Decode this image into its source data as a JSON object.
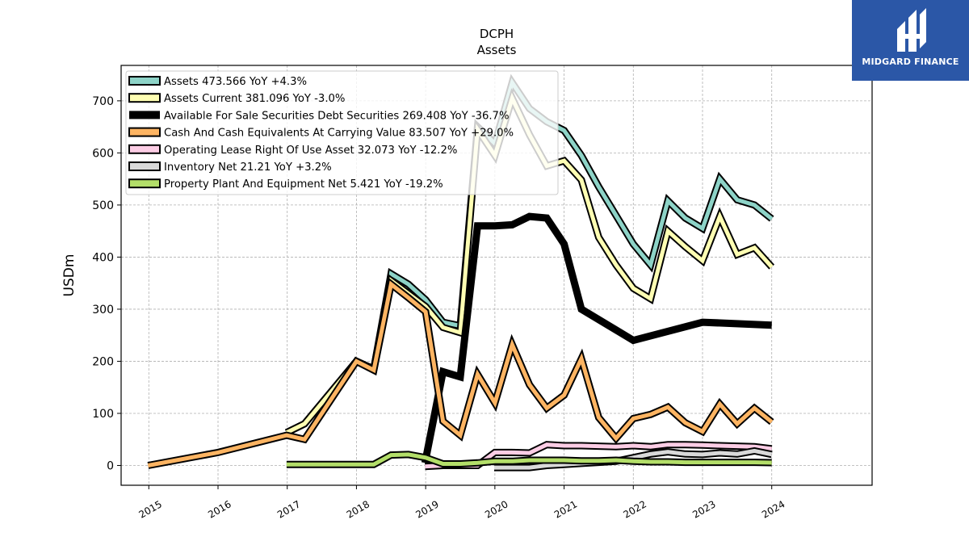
{
  "chart_data": {
    "type": "line",
    "title": "DCPH",
    "subtitle": "Assets",
    "ylabel": "USDm",
    "xlabel": "",
    "xlim": [
      2014.6,
      2025.45
    ],
    "ylim": [
      -38,
      768
    ],
    "yticks": [
      0,
      100,
      200,
      300,
      400,
      500,
      600,
      700
    ],
    "xticks": [
      "2015",
      "2016",
      "2017",
      "2018",
      "2019",
      "2020",
      "2021",
      "2022",
      "2023",
      "2024"
    ],
    "grid": true,
    "legend_position": "top-left",
    "series": [
      {
        "name": "Assets  473.566 YoY +4.3%",
        "color": "#8dd3c7",
        "width": 5,
        "points": [
          [
            2016.99,
            63
          ],
          [
            2017.25,
            80
          ],
          [
            2018.0,
            200
          ],
          [
            2018.25,
            185
          ],
          [
            2018.5,
            368
          ],
          [
            2018.75,
            348
          ],
          [
            2019.0,
            318
          ],
          [
            2019.25,
            275
          ],
          [
            2019.5,
            268
          ],
          [
            2019.75,
            650
          ],
          [
            2020.0,
            618
          ],
          [
            2020.25,
            735
          ],
          [
            2020.5,
            685
          ],
          [
            2020.75,
            660
          ],
          [
            2021.0,
            643
          ],
          [
            2021.25,
            595
          ],
          [
            2021.5,
            535
          ],
          [
            2021.75,
            480
          ],
          [
            2022.0,
            425
          ],
          [
            2022.25,
            385
          ],
          [
            2022.5,
            508
          ],
          [
            2022.75,
            475
          ],
          [
            2023.0,
            455
          ],
          [
            2023.25,
            550
          ],
          [
            2023.5,
            510
          ],
          [
            2023.75,
            500
          ],
          [
            2024.0,
            473.566
          ]
        ]
      },
      {
        "name": "Assets Current  381.096 YoY -3.0%",
        "color": "#ffffb3",
        "width": 5,
        "points": [
          [
            2016.99,
            63
          ],
          [
            2017.25,
            80
          ],
          [
            2018.0,
            200
          ],
          [
            2018.25,
            185
          ],
          [
            2018.5,
            355
          ],
          [
            2018.75,
            330
          ],
          [
            2019.0,
            305
          ],
          [
            2019.25,
            265
          ],
          [
            2019.5,
            255
          ],
          [
            2019.75,
            645
          ],
          [
            2020.0,
            595
          ],
          [
            2020.25,
            705
          ],
          [
            2020.5,
            635
          ],
          [
            2020.75,
            575
          ],
          [
            2021.0,
            585
          ],
          [
            2021.25,
            548
          ],
          [
            2021.5,
            438
          ],
          [
            2021.75,
            385
          ],
          [
            2022.0,
            340
          ],
          [
            2022.25,
            320
          ],
          [
            2022.5,
            450
          ],
          [
            2022.75,
            420
          ],
          [
            2023.0,
            393
          ],
          [
            2023.25,
            478
          ],
          [
            2023.5,
            405
          ],
          [
            2023.75,
            418
          ],
          [
            2024.0,
            381.096
          ]
        ]
      },
      {
        "name": "Available For Sale Securities Debt Securities  269.408 YoY -36.7%",
        "color": "#000000",
        "width": 9,
        "border": false,
        "points": [
          [
            2018.99,
            5
          ],
          [
            2019.25,
            180
          ],
          [
            2019.5,
            170
          ],
          [
            2019.75,
            460
          ],
          [
            2020.0,
            460
          ],
          [
            2020.25,
            462
          ],
          [
            2020.5,
            478
          ],
          [
            2020.75,
            475
          ],
          [
            2021.0,
            425
          ],
          [
            2021.25,
            300
          ],
          [
            2022.0,
            240
          ],
          [
            2023.0,
            275
          ],
          [
            2024.0,
            269.408
          ]
        ]
      },
      {
        "name": "Cash And Cash Equivalents At Carrying Value  83.507 YoY +29.0%",
        "color": "#fdb462",
        "width": 5,
        "points": [
          [
            2014.99,
            0
          ],
          [
            2016.0,
            25
          ],
          [
            2016.99,
            58
          ],
          [
            2017.25,
            50
          ],
          [
            2018.0,
            200
          ],
          [
            2018.25,
            183
          ],
          [
            2018.5,
            348
          ],
          [
            2018.75,
            322
          ],
          [
            2019.0,
            295
          ],
          [
            2019.25,
            85
          ],
          [
            2019.5,
            58
          ],
          [
            2019.75,
            175
          ],
          [
            2020.0,
            120
          ],
          [
            2020.25,
            232
          ],
          [
            2020.5,
            155
          ],
          [
            2020.75,
            110
          ],
          [
            2021.0,
            135
          ],
          [
            2021.25,
            205
          ],
          [
            2021.5,
            92
          ],
          [
            2021.75,
            52
          ],
          [
            2022.0,
            90
          ],
          [
            2022.25,
            98
          ],
          [
            2022.5,
            112
          ],
          [
            2022.75,
            82
          ],
          [
            2023.0,
            65
          ],
          [
            2023.25,
            118
          ],
          [
            2023.5,
            80
          ],
          [
            2023.75,
            110
          ],
          [
            2024.0,
            83.507
          ]
        ]
      },
      {
        "name": "Operating Lease Right Of Use Asset  32.073 YoY -12.2%",
        "color": "#fccde5",
        "width": 5,
        "points": [
          [
            2018.99,
            -2
          ],
          [
            2019.25,
            0
          ],
          [
            2019.5,
            0
          ],
          [
            2019.75,
            0
          ],
          [
            2020.0,
            25
          ],
          [
            2020.25,
            25
          ],
          [
            2020.5,
            24
          ],
          [
            2020.75,
            40
          ],
          [
            2021.0,
            38
          ],
          [
            2021.25,
            38
          ],
          [
            2021.5,
            37
          ],
          [
            2021.75,
            36
          ],
          [
            2022.0,
            38
          ],
          [
            2022.25,
            36
          ],
          [
            2022.5,
            40
          ],
          [
            2022.75,
            40
          ],
          [
            2023.0,
            39
          ],
          [
            2023.25,
            38
          ],
          [
            2023.5,
            37
          ],
          [
            2023.75,
            36
          ],
          [
            2024.0,
            32.073
          ]
        ]
      },
      {
        "name": "Inventory Net  21.21 YoY +3.2%",
        "color": "#d9d9d9",
        "width": 5,
        "points": [
          [
            2019.99,
            -4
          ],
          [
            2020.25,
            -4
          ],
          [
            2020.5,
            -4
          ],
          [
            2020.75,
            0
          ],
          [
            2021.0,
            2
          ],
          [
            2021.25,
            4
          ],
          [
            2021.5,
            6
          ],
          [
            2021.75,
            8
          ],
          [
            2022.0,
            15
          ],
          [
            2022.25,
            22
          ],
          [
            2022.5,
            26
          ],
          [
            2022.75,
            22
          ],
          [
            2023.0,
            21
          ],
          [
            2023.25,
            24
          ],
          [
            2023.5,
            22
          ],
          [
            2023.75,
            28
          ],
          [
            2024.0,
            21.21
          ]
        ]
      },
      {
        "name": "Property Plant And Equipment Net  5.421 YoY -19.2%",
        "color": "#b3de69",
        "width": 5,
        "points": [
          [
            2016.99,
            2
          ],
          [
            2017.25,
            2
          ],
          [
            2018.0,
            2
          ],
          [
            2018.25,
            2
          ],
          [
            2018.5,
            20
          ],
          [
            2018.75,
            21
          ],
          [
            2019.0,
            15
          ],
          [
            2019.25,
            3
          ],
          [
            2019.5,
            3
          ],
          [
            2019.75,
            5
          ],
          [
            2020.0,
            8
          ],
          [
            2020.25,
            8
          ],
          [
            2020.5,
            10
          ],
          [
            2020.75,
            10
          ],
          [
            2021.0,
            10
          ],
          [
            2021.25,
            9
          ],
          [
            2021.5,
            9
          ],
          [
            2021.75,
            10
          ],
          [
            2022.0,
            8
          ],
          [
            2022.25,
            7
          ],
          [
            2022.5,
            7
          ],
          [
            2022.75,
            6
          ],
          [
            2023.0,
            6
          ],
          [
            2023.25,
            6
          ],
          [
            2023.5,
            6
          ],
          [
            2023.75,
            6
          ],
          [
            2024.0,
            5.421
          ]
        ]
      }
    ]
  },
  "logo": {
    "brand_name": "MIDGARD FINANCE"
  }
}
